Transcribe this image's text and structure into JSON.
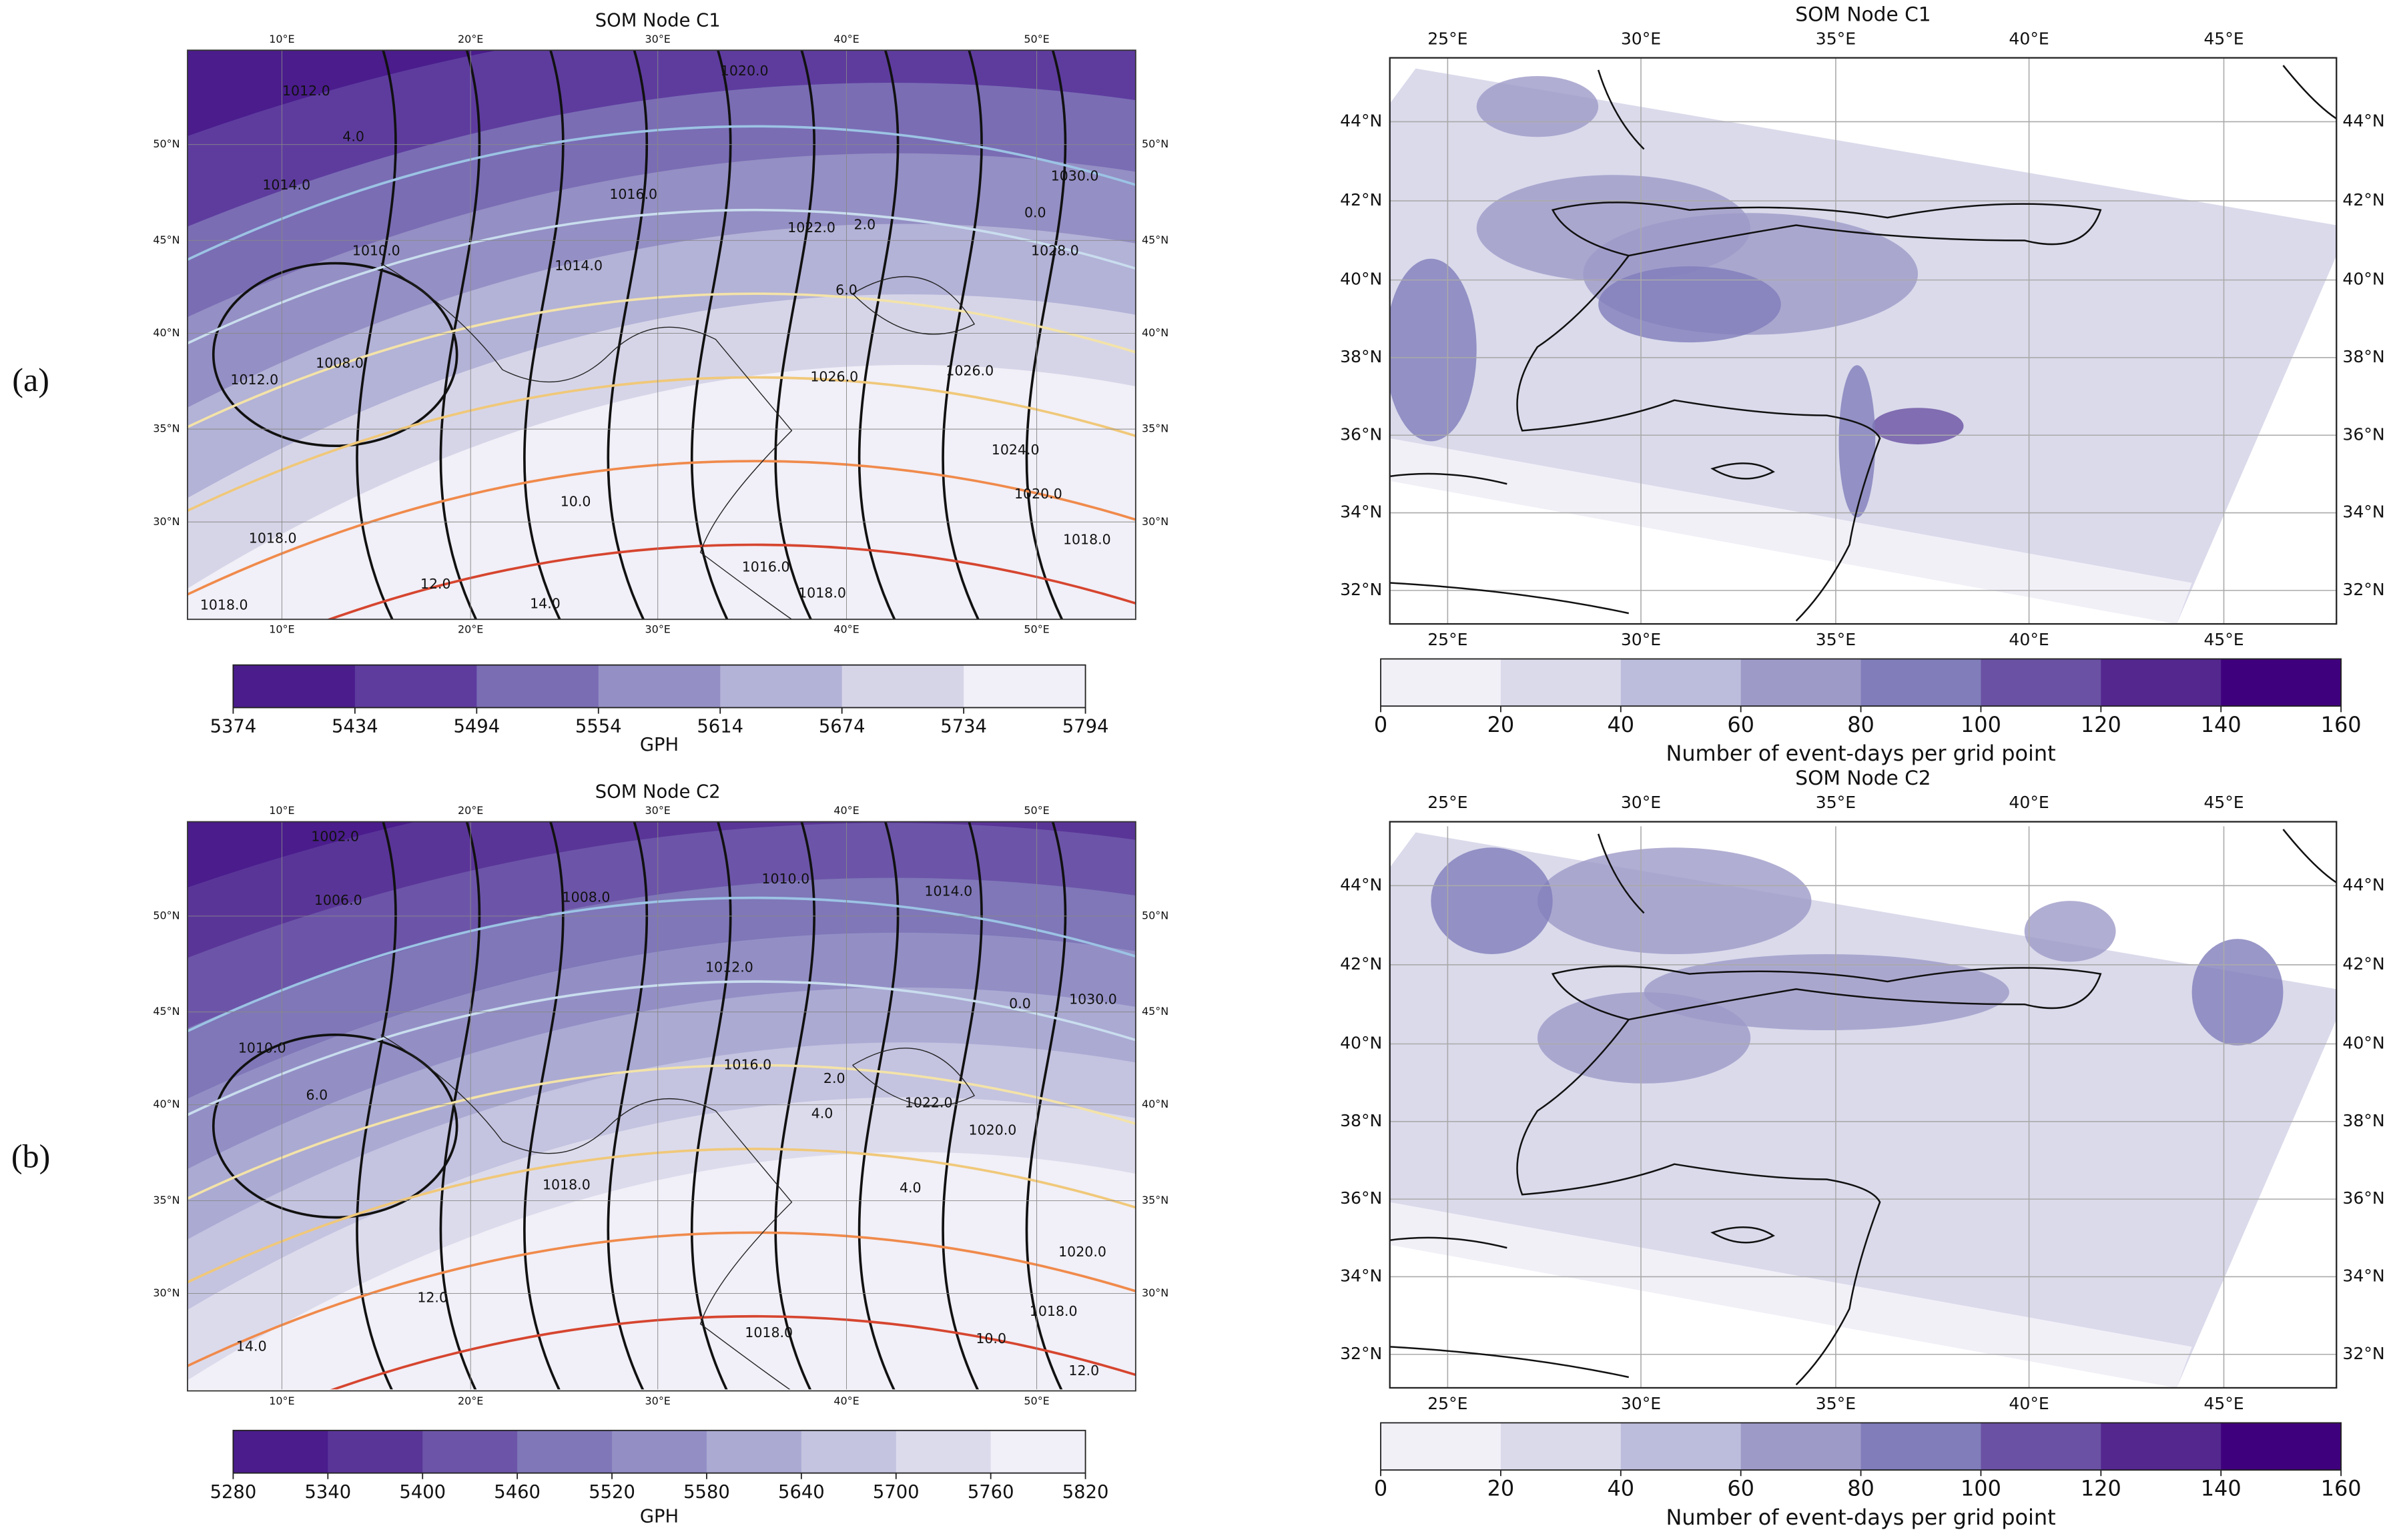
{
  "panels": [
    {
      "label": "(a)",
      "gph_map": {
        "title": "SOM Node C1",
        "lon_top": [
          "10°E",
          "20°E",
          "30°E",
          "40°E",
          "50°E"
        ],
        "lon_bottom": [
          "10°E",
          "20°E",
          "30°E",
          "40°E",
          "50°E"
        ],
        "lat_left": [
          "50°N",
          "45°N",
          "40°N",
          "35°N",
          "30°N"
        ],
        "lat_right": [
          "50°N",
          "45°N",
          "40°N",
          "35°N",
          "30°N"
        ],
        "contour_labels": [
          "1012.0",
          "1014.0",
          "1016.0",
          "1020.0",
          "1022.0",
          "1030.0",
          "1028.0",
          "1026.0",
          "1024.0",
          "1020.0",
          "1010.0",
          "1014.0",
          "1008.0",
          "1012.0",
          "1018.0",
          "1018.0",
          "1016.0",
          "1018.0",
          "1018.0",
          "1026.0",
          "4.0",
          "0.0",
          "2.0",
          "6.0",
          "12.0",
          "14.0",
          "10.0"
        ],
        "colorbar": {
          "ticks": [
            5374,
            5434,
            5494,
            5554,
            5614,
            5674,
            5734,
            5794
          ],
          "label": "GPH",
          "colors": [
            "#4a1c8c",
            "#5e3c9e",
            "#7a6db4",
            "#948fc4",
            "#b3b2d7",
            "#d6d5e8",
            "#f1eff7"
          ]
        }
      },
      "event_map": {
        "title": "SOM Node C1",
        "lon_top": [
          "25°E",
          "30°E",
          "35°E",
          "40°E",
          "45°E"
        ],
        "lon_bottom": [
          "25°E",
          "30°E",
          "35°E",
          "40°E",
          "45°E"
        ],
        "lat_left": [
          "44°N",
          "42°N",
          "40°N",
          "38°N",
          "36°N",
          "34°N",
          "32°N"
        ],
        "lat_right": [
          "44°N",
          "42°N",
          "40°N",
          "38°N",
          "36°N",
          "34°N",
          "32°N"
        ],
        "colorbar": {
          "ticks": [
            0,
            20,
            40,
            60,
            80,
            100,
            120,
            140,
            160
          ],
          "label": "Number of event-days per grid point",
          "colors": [
            "#f2f0f7",
            "#dadaeb",
            "#bcbddc",
            "#9e9ac8",
            "#807dba",
            "#6a51a3",
            "#54278f",
            "#3f007d"
          ]
        }
      }
    },
    {
      "label": "(b)",
      "gph_map": {
        "title": "SOM Node C2",
        "lon_top": [
          "10°E",
          "20°E",
          "30°E",
          "40°E",
          "50°E"
        ],
        "lon_bottom": [
          "10°E",
          "20°E",
          "30°E",
          "40°E",
          "50°E"
        ],
        "lat_left": [
          "50°N",
          "45°N",
          "40°N",
          "35°N",
          "30°N"
        ],
        "lat_right": [
          "50°N",
          "45°N",
          "40°N",
          "35°N",
          "30°N"
        ],
        "contour_labels": [
          "1002.0",
          "1006.0",
          "1008.0",
          "1010.0",
          "1014.0",
          "1012.0",
          "1010.0",
          "1016.0",
          "1022.0",
          "1020.0",
          "1018.0",
          "1018.0",
          "1018.0",
          "1020.0",
          "1030.0",
          "4.0",
          "4.0",
          "2.0",
          "0.0",
          "6.0",
          "12.0",
          "14.0",
          "10.0",
          "12.0"
        ],
        "colorbar": {
          "ticks": [
            5280,
            5340,
            5400,
            5460,
            5520,
            5580,
            5640,
            5700,
            5760,
            5820
          ],
          "label": "GPH",
          "colors": [
            "#4a1c8c",
            "#5a3598",
            "#6c55a8",
            "#7f77b8",
            "#938fc5",
            "#abaad3",
            "#c4c3e0",
            "#dcdbec",
            "#f1eff7"
          ]
        }
      },
      "event_map": {
        "title": "SOM Node C2",
        "lon_top": [
          "25°E",
          "30°E",
          "35°E",
          "40°E",
          "45°E"
        ],
        "lon_bottom": [
          "25°E",
          "30°E",
          "35°E",
          "40°E",
          "45°E"
        ],
        "lat_left": [
          "44°N",
          "42°N",
          "40°N",
          "38°N",
          "36°N",
          "34°N",
          "32°N"
        ],
        "lat_right": [
          "44°N",
          "42°N",
          "40°N",
          "38°N",
          "36°N",
          "34°N",
          "32°N"
        ],
        "colorbar": {
          "ticks": [
            0,
            20,
            40,
            60,
            80,
            100,
            120,
            140,
            160
          ],
          "label": "Number of event-days per grid point",
          "colors": [
            "#f2f0f7",
            "#dadaeb",
            "#bcbddc",
            "#9e9ac8",
            "#807dba",
            "#6a51a3",
            "#54278f",
            "#3f007d"
          ]
        }
      }
    }
  ]
}
